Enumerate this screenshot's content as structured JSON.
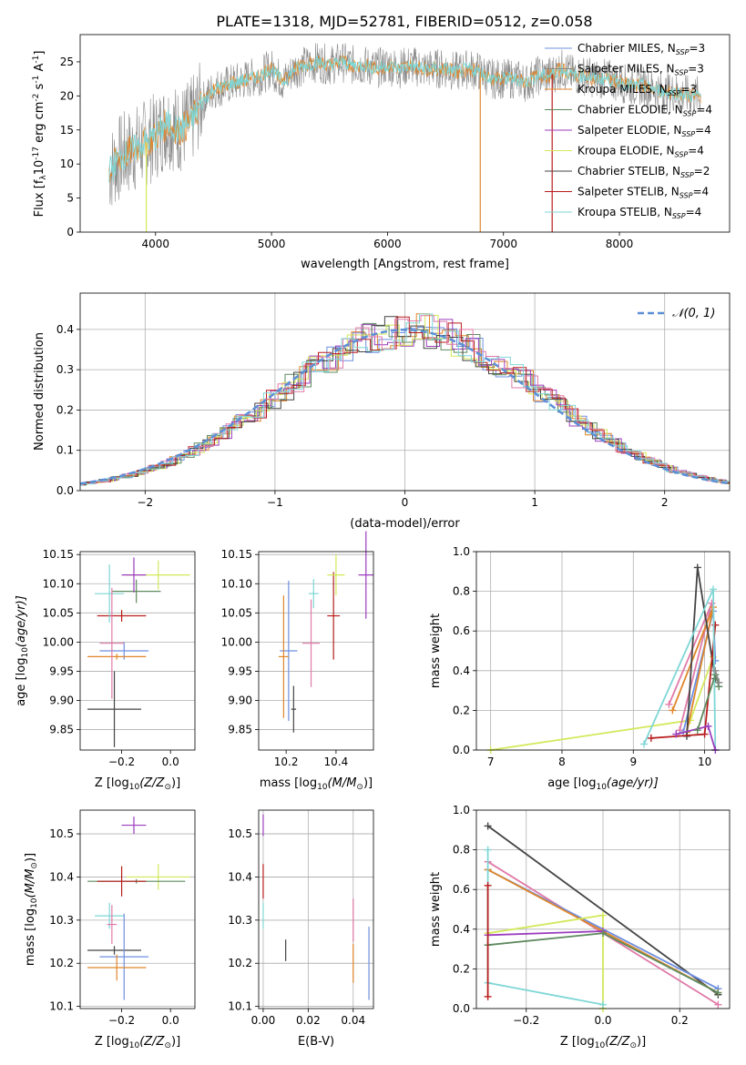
{
  "title": "PLATE=1318, MJD=52781, FIBERID=0512, z=0.058",
  "colors": {
    "chabrier_miles": "#6e8fe0",
    "salpeter_miles": "#8a8a8a",
    "kroupa_miles": "#e0862a",
    "chabrier_elodie": "#5e8a5e",
    "salpeter_elodie": "#9b3dbd",
    "kroupa_elodie": "#d4e85a",
    "chabrier_stelib": "#444444",
    "salpeter_stelib": "#b81c1c",
    "kroupa_stelib": "#7fd6d6",
    "pink": "#e07aa8",
    "normal_curve": "#5b8fd6"
  },
  "chart_data": [
    {
      "id": "spectrum",
      "type": "line",
      "xlabel": "wavelength [Angstrom, rest frame]",
      "ylabel_main": "Flux [f",
      "ylabel_sub": "λ",
      "ylabel_rest": "10",
      "ylabel_exp1": "-17",
      "ylabel_mid": " erg cm",
      "ylabel_exp2": "-2",
      "ylabel_s": " s",
      "ylabel_exp3": "-1",
      "ylabel_a": " A",
      "ylabel_exp4": "-1",
      "ylabel_end": "]",
      "xlim": [
        3350,
        8950
      ],
      "ylim": [
        0,
        29
      ],
      "xticks": [
        "4000",
        "5000",
        "6000",
        "7000",
        "8000"
      ],
      "xtick_values": [
        4000,
        5000,
        6000,
        7000,
        8000
      ],
      "yticks": [
        "0",
        "5",
        "10",
        "15",
        "20",
        "25"
      ],
      "ytick_values": [
        0,
        5,
        10,
        15,
        20,
        25
      ],
      "continuum_x": [
        3600,
        3700,
        3800,
        3900,
        4000,
        4100,
        4200,
        4300,
        4400,
        4500,
        4600,
        4700,
        4800,
        4900,
        5000,
        5100,
        5200,
        5300,
        5400,
        5500,
        5600,
        5700,
        5800,
        5900,
        6000,
        6100,
        6200,
        6300,
        6400,
        6500,
        6600,
        6700,
        6800,
        6900,
        7000,
        7100,
        7200,
        7300,
        7400,
        7500,
        7600,
        7700,
        7800,
        7900,
        8000,
        8100,
        8200,
        8300,
        8400,
        8500,
        8600,
        8700
      ],
      "continuum_y": [
        9,
        11,
        12,
        13,
        14,
        16,
        15,
        16,
        19,
        21,
        21.5,
        22,
        22.5,
        23,
        24,
        22,
        24,
        24.5,
        25,
        24.5,
        25,
        24.5,
        24.5,
        24,
        24.5,
        24,
        24.5,
        24,
        24,
        24,
        23.5,
        24,
        23.5,
        22.5,
        22.5,
        22.5,
        22,
        23,
        23,
        24,
        23,
        23,
        22.5,
        22.5,
        22,
        21.5,
        21.5,
        21,
        20.5,
        20.5,
        20,
        20
      ],
      "legend": [
        {
          "label": "Chabrier MILES, N",
          "n": "3",
          "color_key": "chabrier_miles"
        },
        {
          "label": "Salpeter MILES, N",
          "n": "3",
          "color_key": "salpeter_miles"
        },
        {
          "label": "Kroupa MILES, N",
          "n": "3",
          "color_key": "kroupa_miles"
        },
        {
          "label": "Chabrier ELODIE, N",
          "n": "4",
          "color_key": "chabrier_elodie"
        },
        {
          "label": "Salpeter ELODIE, N",
          "n": "4",
          "color_key": "salpeter_elodie"
        },
        {
          "label": "Kroupa ELODIE, N",
          "n": "4",
          "color_key": "kroupa_elodie"
        },
        {
          "label": "Chabrier STELIB, N",
          "n": "2",
          "color_key": "chabrier_stelib"
        },
        {
          "label": "Salpeter STELIB, N",
          "n": "4",
          "color_key": "salpeter_stelib"
        },
        {
          "label": "Kroupa STELIB, N",
          "n": "4",
          "color_key": "kroupa_stelib"
        }
      ],
      "legend_sub": "SSP",
      "legend_placement": "right"
    },
    {
      "id": "residuals",
      "type": "histogram",
      "xlabel": "(data-model)/error",
      "ylabel": "Normed distribution",
      "xlim": [
        -2.5,
        2.5
      ],
      "ylim": [
        0,
        0.49
      ],
      "xticks": [
        "−2",
        "−1",
        "0",
        "1",
        "2"
      ],
      "xtick_values": [
        -2,
        -1,
        0,
        1,
        2
      ],
      "yticks": [
        "0.0",
        "0.1",
        "0.2",
        "0.3",
        "0.4"
      ],
      "ytick_values": [
        0,
        0.1,
        0.2,
        0.3,
        0.4
      ],
      "legend_label": "𝒩(0, 1)",
      "legend_placement": "top-right",
      "grid": true
    },
    {
      "id": "age_vs_Z",
      "type": "errorbar",
      "xlabel": "Z [log",
      "xlabel_sub": "10",
      "xlabel_rest": "(Z/Z",
      "xlabel_sun": "⊙",
      "xlabel_end": ")]",
      "ylabel": "age  [log",
      "ylabel_sub": "10",
      "ylabel_rest": "(age/yr)]",
      "xlim": [
        -0.37,
        0.1
      ],
      "ylim": [
        9.815,
        10.155
      ],
      "xticks": [
        "−0.2",
        "0.0"
      ],
      "xtick_values": [
        -0.2,
        0
      ],
      "yticks": [
        "9.85",
        "9.90",
        "9.95",
        "10.00",
        "10.05",
        "10.10",
        "10.15"
      ],
      "ytick_values": [
        9.85,
        9.9,
        9.95,
        10.0,
        10.05,
        10.1,
        10.15
      ],
      "points": [
        {
          "x": -0.19,
          "y": 9.985,
          "xerr": 0.1,
          "yerr": 0.015,
          "color_key": "chabrier_miles"
        },
        {
          "x": -0.22,
          "y": 9.975,
          "xerr": 0.12,
          "yerr": 0.005,
          "color_key": "kroupa_miles"
        },
        {
          "x": -0.23,
          "y": 9.885,
          "xerr": 0.11,
          "yerr": 0.065,
          "color_key": "chabrier_stelib"
        },
        {
          "x": -0.05,
          "y": 10.115,
          "xerr": 0.13,
          "yerr": 0.025,
          "color_key": "kroupa_elodie"
        },
        {
          "x": -0.14,
          "y": 10.087,
          "xerr": 0.1,
          "yerr": 0.02,
          "color_key": "chabrier_elodie"
        },
        {
          "x": -0.2,
          "y": 10.045,
          "xerr": 0.1,
          "yerr": 0.01,
          "color_key": "salpeter_stelib"
        },
        {
          "x": -0.25,
          "y": 10.083,
          "xerr": 0.06,
          "yerr": 0.05,
          "color_key": "kroupa_stelib"
        },
        {
          "x": -0.24,
          "y": 9.998,
          "xerr": 0.05,
          "yerr": 0.095,
          "color_key": "pink"
        },
        {
          "x": -0.15,
          "y": 10.115,
          "xerr": 0.05,
          "yerr": 0.03,
          "color_key": "salpeter_elodie"
        }
      ]
    },
    {
      "id": "age_vs_mass",
      "type": "errorbar",
      "xlabel": "mass [log",
      "xlabel_sub": "10",
      "xlabel_rest": "(M/M",
      "xlabel_sun": "⊙",
      "xlabel_end": ")]",
      "xlim": [
        10.09,
        10.55
      ],
      "ylim": [
        9.815,
        10.155
      ],
      "xticks": [
        "10.2",
        "10.4"
      ],
      "xtick_values": [
        10.2,
        10.4
      ],
      "yticks": [
        "9.85",
        "9.90",
        "9.95",
        "10.00",
        "10.05",
        "10.10",
        "10.15"
      ],
      "ytick_values": [
        9.85,
        9.9,
        9.95,
        10.0,
        10.05,
        10.1,
        10.15
      ],
      "points": [
        {
          "x": 10.21,
          "y": 9.985,
          "xerr": 0.035,
          "yerr": 0.12,
          "color_key": "chabrier_miles"
        },
        {
          "x": 10.19,
          "y": 9.975,
          "xerr": 0.02,
          "yerr": 0.105,
          "color_key": "kroupa_miles"
        },
        {
          "x": 10.23,
          "y": 9.885,
          "xerr": 0.01,
          "yerr": 0.04,
          "color_key": "chabrier_stelib"
        },
        {
          "x": 10.3,
          "y": 9.998,
          "xerr": 0.035,
          "yerr": 0.075,
          "color_key": "pink"
        },
        {
          "x": 10.31,
          "y": 10.083,
          "xerr": 0.02,
          "yerr": 0.025,
          "color_key": "kroupa_stelib"
        },
        {
          "x": 10.39,
          "y": 10.045,
          "xerr": 0.025,
          "yerr": 0.075,
          "color_key": "salpeter_stelib"
        },
        {
          "x": 10.4,
          "y": 10.115,
          "xerr": 0.035,
          "yerr": 0.035,
          "color_key": "kroupa_elodie"
        },
        {
          "x": 10.52,
          "y": 10.115,
          "xerr": 0.03,
          "yerr": 0.075,
          "color_key": "salpeter_elodie"
        }
      ]
    },
    {
      "id": "weight_vs_age",
      "type": "line",
      "xlabel": "age  [log",
      "xlabel_sub": "10",
      "xlabel_rest": "(age/yr)]",
      "ylabel": "mass weight",
      "xlim": [
        6.8,
        10.35
      ],
      "ylim": [
        0,
        1
      ],
      "xticks": [
        "7",
        "8",
        "9",
        "10"
      ],
      "xtick_values": [
        7,
        8,
        9,
        10
      ],
      "yticks": [
        "0.0",
        "0.2",
        "0.4",
        "0.6",
        "0.8",
        "1.0"
      ],
      "ytick_values": [
        0,
        0.2,
        0.4,
        0.6,
        0.8,
        1.0
      ],
      "grid": true,
      "series": [
        {
          "color_key": "kroupa_elodie",
          "x": [
            7.0,
            9.8,
            10.12
          ],
          "y": [
            0.0,
            0.15,
            0.47
          ]
        },
        {
          "color_key": "pink",
          "x": [
            9.5,
            10.1,
            9.65
          ],
          "y": [
            0.23,
            0.74,
            0.1
          ]
        },
        {
          "color_key": "chabrier_miles",
          "x": [
            9.7,
            10.12,
            10.15
          ],
          "y": [
            0.09,
            0.7,
            0.45
          ]
        },
        {
          "color_key": "kroupa_miles",
          "x": [
            9.55,
            10.12,
            9.75
          ],
          "y": [
            0.2,
            0.72,
            0.09
          ]
        },
        {
          "color_key": "chabrier_stelib",
          "x": [
            9.75,
            9.9,
            10.15
          ],
          "y": [
            0.07,
            0.92,
            0.36
          ]
        },
        {
          "color_key": "salpeter_stelib",
          "x": [
            9.25,
            10.0,
            10.15
          ],
          "y": [
            0.06,
            0.08,
            0.63
          ]
        },
        {
          "color_key": "kroupa_stelib",
          "x": [
            9.15,
            10.12,
            10.15
          ],
          "y": [
            0.03,
            0.81,
            0.0
          ]
        },
        {
          "color_key": "salpeter_elodie",
          "x": [
            9.6,
            10.05,
            10.15
          ],
          "y": [
            0.08,
            0.12,
            0.0
          ]
        },
        {
          "color_key": "chabrier_elodie",
          "x": [
            9.9,
            10.15,
            10.2
          ],
          "y": [
            0.1,
            0.38,
            0.32
          ]
        },
        {
          "color_key": "salpeter_miles",
          "x": [
            10.15,
            10.2
          ],
          "y": [
            0.4,
            0.34
          ]
        }
      ]
    },
    {
      "id": "mass_vs_Z",
      "type": "errorbar",
      "xlabel": "Z [log",
      "xlabel_sub": "10",
      "xlabel_rest": "(Z/Z",
      "xlabel_sun": "⊙",
      "xlabel_end": ")]",
      "ylabel": "mass [log",
      "ylabel_sub": "10",
      "ylabel_rest": "(M/M",
      "ylabel_sun": "⊙",
      "ylabel_end": ")]",
      "xlim": [
        -0.37,
        0.1
      ],
      "ylim": [
        10.095,
        10.555
      ],
      "xticks": [
        "−0.2",
        "0.0"
      ],
      "xtick_values": [
        -0.2,
        0
      ],
      "yticks": [
        "10.1",
        "10.2",
        "10.3",
        "10.4",
        "10.5"
      ],
      "ytick_values": [
        10.1,
        10.2,
        10.3,
        10.4,
        10.5
      ],
      "points": [
        {
          "x": -0.15,
          "y": 10.52,
          "xerr": 0.05,
          "yerr": 0.02,
          "color_key": "salpeter_elodie"
        },
        {
          "x": -0.05,
          "y": 10.4,
          "xerr": 0.13,
          "yerr": 0.03,
          "color_key": "kroupa_elodie"
        },
        {
          "x": -0.14,
          "y": 10.39,
          "xerr": 0.2,
          "yerr": 0.005,
          "color_key": "chabrier_elodie"
        },
        {
          "x": -0.2,
          "y": 10.39,
          "xerr": 0.1,
          "yerr": 0.035,
          "color_key": "salpeter_stelib"
        },
        {
          "x": -0.25,
          "y": 10.31,
          "xerr": 0.06,
          "yerr": 0.03,
          "color_key": "kroupa_stelib"
        },
        {
          "x": -0.24,
          "y": 10.29,
          "xerr": 0.02,
          "yerr": 0.045,
          "color_key": "pink"
        },
        {
          "x": -0.23,
          "y": 10.23,
          "xerr": 0.11,
          "yerr": 0.01,
          "color_key": "chabrier_stelib"
        },
        {
          "x": -0.19,
          "y": 10.215,
          "xerr": 0.1,
          "yerr": 0.1,
          "color_key": "chabrier_miles"
        },
        {
          "x": -0.22,
          "y": 10.19,
          "xerr": 0.12,
          "yerr": 0.03,
          "color_key": "kroupa_miles"
        }
      ]
    },
    {
      "id": "mass_vs_ebv",
      "type": "errorbar",
      "xlabel": "E(B-V)",
      "xlim": [
        -0.002,
        0.049
      ],
      "ylim": [
        10.095,
        10.555
      ],
      "xticks": [
        "0.00",
        "0.02",
        "0.04"
      ],
      "xtick_values": [
        0,
        0.02,
        0.04
      ],
      "yticks": [
        "10.1",
        "10.2",
        "10.3",
        "10.4",
        "10.5"
      ],
      "ytick_values": [
        10.1,
        10.2,
        10.3,
        10.4,
        10.5
      ],
      "points": [
        {
          "x": 0.0,
          "y": 10.52,
          "xerr": 0,
          "yerr": 0.025,
          "color_key": "salpeter_elodie"
        },
        {
          "x": 0.0,
          "y": 10.39,
          "xerr": 0,
          "yerr": 0.04,
          "color_key": "salpeter_stelib"
        },
        {
          "x": 0.0,
          "y": 10.31,
          "xerr": 0,
          "yerr": 0.03,
          "color_key": "kroupa_stelib"
        },
        {
          "x": 0.01,
          "y": 10.23,
          "xerr": 0,
          "yerr": 0.025,
          "color_key": "chabrier_stelib"
        },
        {
          "x": 0.04,
          "y": 10.3,
          "xerr": 0,
          "yerr": 0.05,
          "color_key": "pink"
        },
        {
          "x": 0.04,
          "y": 10.2,
          "xerr": 0,
          "yerr": 0.045,
          "color_key": "kroupa_miles"
        },
        {
          "x": 0.047,
          "y": 10.2,
          "xerr": 0,
          "yerr": 0.085,
          "color_key": "chabrier_miles"
        }
      ]
    },
    {
      "id": "weight_vs_Z",
      "type": "line",
      "xlabel": "Z [log",
      "xlabel_sub": "10",
      "xlabel_rest": "(Z/Z",
      "xlabel_sun": "⊙",
      "xlabel_end": ")]",
      "ylabel": "mass weight",
      "xlim": [
        -0.33,
        0.33
      ],
      "ylim": [
        0,
        1
      ],
      "xticks": [
        "−0.2",
        "0.0",
        "0.2"
      ],
      "xtick_values": [
        -0.2,
        0,
        0.2
      ],
      "yticks": [
        "0.0",
        "0.2",
        "0.4",
        "0.6",
        "0.8",
        "1.0"
      ],
      "ytick_values": [
        0,
        0.2,
        0.4,
        0.6,
        0.8,
        1.0
      ],
      "grid": true,
      "series": [
        {
          "color_key": "chabrier_stelib",
          "x": [
            -0.3,
            0.3
          ],
          "y": [
            0.92,
            0.07
          ]
        },
        {
          "color_key": "pink",
          "x": [
            -0.3,
            0.3
          ],
          "y": [
            0.74,
            0.02
          ]
        },
        {
          "color_key": "chabrier_miles",
          "x": [
            -0.3,
            0.3
          ],
          "y": [
            0.7,
            0.1
          ]
        },
        {
          "color_key": "kroupa_miles",
          "x": [
            -0.3,
            0.3
          ],
          "y": [
            0.7,
            0.08
          ]
        },
        {
          "color_key": "kroupa_elodie",
          "x": [
            -0.3,
            0.0,
            0.0
          ],
          "y": [
            0.38,
            0.47,
            0.0
          ]
        },
        {
          "color_key": "salpeter_elodie",
          "x": [
            -0.3,
            0.0
          ],
          "y": [
            0.37,
            0.39
          ]
        },
        {
          "color_key": "chabrier_elodie",
          "x": [
            -0.3,
            0.0,
            0.3
          ],
          "y": [
            0.32,
            0.38,
            0.08
          ]
        },
        {
          "color_key": "kroupa_stelib",
          "x": [
            -0.3,
            -0.3,
            0.0
          ],
          "y": [
            0.8,
            0.13,
            0.02
          ]
        },
        {
          "color_key": "salpeter_stelib",
          "x": [
            -0.3,
            -0.3
          ],
          "y": [
            0.62,
            0.06
          ]
        }
      ]
    }
  ]
}
